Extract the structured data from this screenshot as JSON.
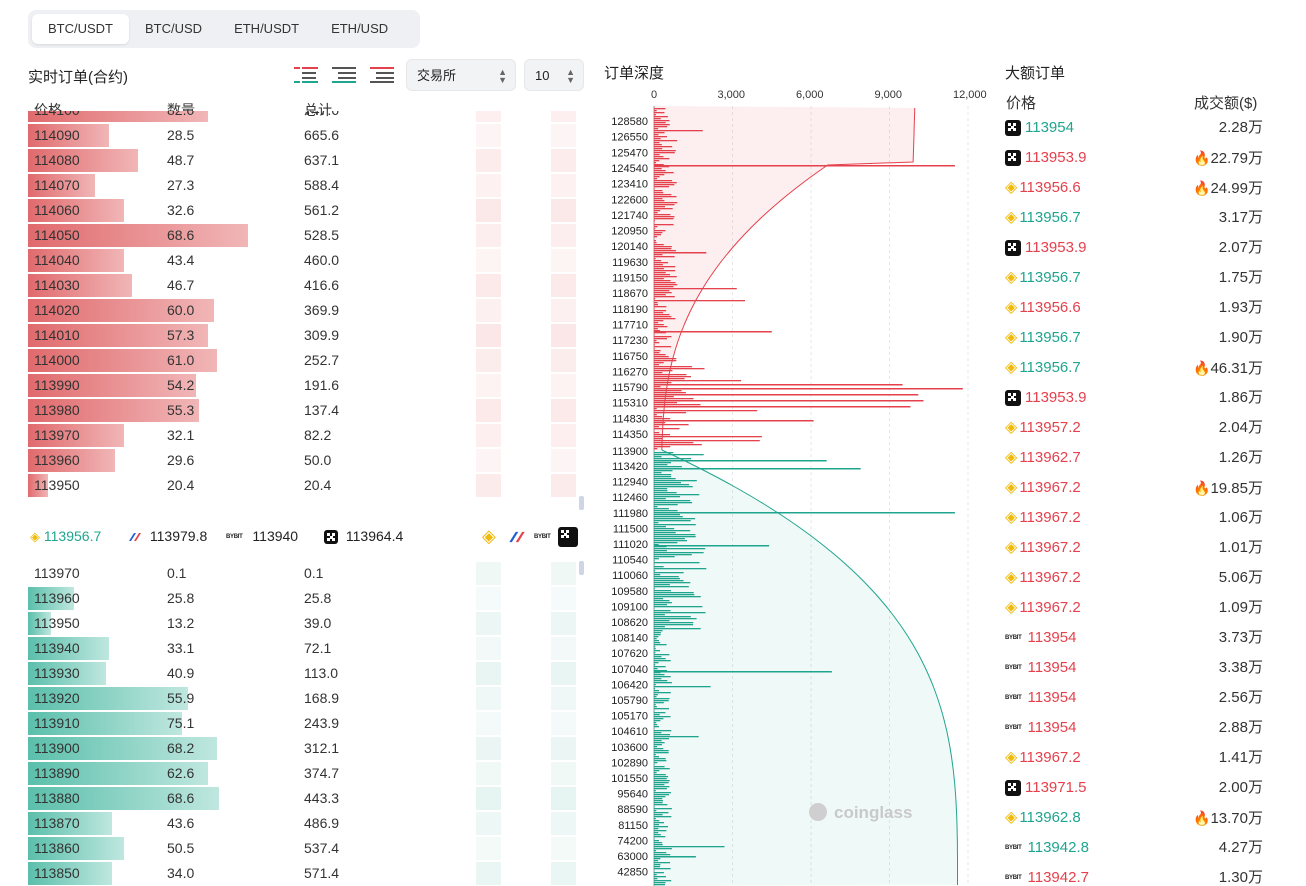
{
  "tabs": [
    "BTC/USDT",
    "BTC/USD",
    "ETH/USDT",
    "ETH/USD"
  ],
  "orderbook": {
    "title": "实时订单(合约)",
    "exchange_select": "交易所",
    "depth_select": "10",
    "headers": {
      "price": "价格",
      "qty": "数量",
      "total": "总计"
    },
    "asks": [
      {
        "price": "114100",
        "qty": "82.0",
        "total": "747.6",
        "bar": 0.62
      },
      {
        "price": "114090",
        "qty": "28.5",
        "total": "665.6",
        "bar": 0.28
      },
      {
        "price": "114080",
        "qty": "48.7",
        "total": "637.1",
        "bar": 0.38
      },
      {
        "price": "114070",
        "qty": "27.3",
        "total": "588.4",
        "bar": 0.23
      },
      {
        "price": "114060",
        "qty": "32.6",
        "total": "561.2",
        "bar": 0.33
      },
      {
        "price": "114050",
        "qty": "68.6",
        "total": "528.5",
        "bar": 0.76
      },
      {
        "price": "114040",
        "qty": "43.4",
        "total": "460.0",
        "bar": 0.33
      },
      {
        "price": "114030",
        "qty": "46.7",
        "total": "416.6",
        "bar": 0.36
      },
      {
        "price": "114020",
        "qty": "60.0",
        "total": "369.9",
        "bar": 0.64
      },
      {
        "price": "114010",
        "qty": "57.3",
        "total": "309.9",
        "bar": 0.62
      },
      {
        "price": "114000",
        "qty": "61.0",
        "total": "252.7",
        "bar": 0.65
      },
      {
        "price": "113990",
        "qty": "54.2",
        "total": "191.6",
        "bar": 0.58
      },
      {
        "price": "113980",
        "qty": "55.3",
        "total": "137.4",
        "bar": 0.59
      },
      {
        "price": "113970",
        "qty": "32.1",
        "total": "82.2",
        "bar": 0.33
      },
      {
        "price": "113960",
        "qty": "29.6",
        "total": "50.0",
        "bar": 0.3
      },
      {
        "price": "113950",
        "qty": "20.4",
        "total": "20.4",
        "bar": 0.07
      }
    ],
    "exchange_prices": [
      {
        "exchange": "binance",
        "icon": "binance-icon",
        "price": "113956.7"
      },
      {
        "exchange": "deribit",
        "icon": "deribit-icon",
        "price": "113979.8"
      },
      {
        "exchange": "bybit",
        "icon": "bybit-icon",
        "price": "113940"
      },
      {
        "exchange": "okx",
        "icon": "okx-icon",
        "price": "113964.4"
      }
    ],
    "bids": [
      {
        "price": "113970",
        "qty": "0.1",
        "total": "0.1",
        "bar": 0.0
      },
      {
        "price": "113960",
        "qty": "25.8",
        "total": "25.8",
        "bar": 0.16
      },
      {
        "price": "113950",
        "qty": "13.2",
        "total": "39.0",
        "bar": 0.08
      },
      {
        "price": "113940",
        "qty": "33.1",
        "total": "72.1",
        "bar": 0.28
      },
      {
        "price": "113930",
        "qty": "40.9",
        "total": "113.0",
        "bar": 0.27
      },
      {
        "price": "113920",
        "qty": "55.9",
        "total": "168.9",
        "bar": 0.55
      },
      {
        "price": "113910",
        "qty": "75.1",
        "total": "243.9",
        "bar": 0.53
      },
      {
        "price": "113900",
        "qty": "68.2",
        "total": "312.1",
        "bar": 0.65
      },
      {
        "price": "113890",
        "qty": "62.6",
        "total": "374.7",
        "bar": 0.62
      },
      {
        "price": "113880",
        "qty": "68.6",
        "total": "443.3",
        "bar": 0.66
      },
      {
        "price": "113870",
        "qty": "43.6",
        "total": "486.9",
        "bar": 0.29
      },
      {
        "price": "113860",
        "qty": "50.5",
        "total": "537.4",
        "bar": 0.33
      },
      {
        "price": "113850",
        "qty": "34.0",
        "total": "571.4",
        "bar": 0.29
      }
    ]
  },
  "depth": {
    "title": "订单深度",
    "x_ticks": [
      "0",
      "3,000",
      "6,000",
      "9,000",
      "12,000"
    ],
    "x_max": 12000,
    "ask_labels": [
      "128580",
      "126550",
      "125470",
      "124540",
      "123410",
      "122600",
      "121740",
      "120950",
      "120140",
      "119630",
      "119150",
      "118670",
      "118190",
      "117710",
      "117230",
      "116750",
      "116270",
      "115790",
      "115310",
      "114830",
      "114350"
    ],
    "mid_label": "113900",
    "bid_labels": [
      "113420",
      "112940",
      "112460",
      "111980",
      "111500",
      "111020",
      "110540",
      "110060",
      "109580",
      "109100",
      "108620",
      "108140",
      "107620",
      "107040",
      "106420",
      "105790",
      "105170",
      "104610",
      "103600",
      "102890",
      "101550",
      "95640",
      "88590",
      "81150",
      "74200",
      "63000",
      "42850"
    ],
    "watermark": "coinglass"
  },
  "large_orders": {
    "title": "大额订单",
    "headers": {
      "price": "价格",
      "amount": "成交额($)"
    },
    "rows": [
      {
        "ex": "okx",
        "price": "113954",
        "side": "buy",
        "amount": "2.28万",
        "hot": false
      },
      {
        "ex": "okx",
        "price": "113953.9",
        "side": "sell",
        "amount": "22.79万",
        "hot": true
      },
      {
        "ex": "binance",
        "price": "113956.6",
        "side": "sell",
        "amount": "24.99万",
        "hot": true
      },
      {
        "ex": "binance",
        "price": "113956.7",
        "side": "buy",
        "amount": "3.17万",
        "hot": false
      },
      {
        "ex": "okx",
        "price": "113953.9",
        "side": "sell",
        "amount": "2.07万",
        "hot": false
      },
      {
        "ex": "binance",
        "price": "113956.7",
        "side": "buy",
        "amount": "1.75万",
        "hot": false
      },
      {
        "ex": "binance",
        "price": "113956.6",
        "side": "sell",
        "amount": "1.93万",
        "hot": false
      },
      {
        "ex": "binance",
        "price": "113956.7",
        "side": "buy",
        "amount": "1.90万",
        "hot": false
      },
      {
        "ex": "binance",
        "price": "113956.7",
        "side": "buy",
        "amount": "46.31万",
        "hot": true
      },
      {
        "ex": "okx",
        "price": "113953.9",
        "side": "sell",
        "amount": "1.86万",
        "hot": false
      },
      {
        "ex": "binance",
        "price": "113957.2",
        "side": "sell",
        "amount": "2.04万",
        "hot": false
      },
      {
        "ex": "binance",
        "price": "113962.7",
        "side": "sell",
        "amount": "1.26万",
        "hot": false
      },
      {
        "ex": "binance",
        "price": "113967.2",
        "side": "sell",
        "amount": "19.85万",
        "hot": true
      },
      {
        "ex": "binance",
        "price": "113967.2",
        "side": "sell",
        "amount": "1.06万",
        "hot": false
      },
      {
        "ex": "binance",
        "price": "113967.2",
        "side": "sell",
        "amount": "1.01万",
        "hot": false
      },
      {
        "ex": "binance",
        "price": "113967.2",
        "side": "sell",
        "amount": "5.06万",
        "hot": false
      },
      {
        "ex": "binance",
        "price": "113967.2",
        "side": "sell",
        "amount": "1.09万",
        "hot": false
      },
      {
        "ex": "bybit",
        "price": "113954",
        "side": "sell",
        "amount": "3.73万",
        "hot": false
      },
      {
        "ex": "bybit",
        "price": "113954",
        "side": "sell",
        "amount": "3.38万",
        "hot": false
      },
      {
        "ex": "bybit",
        "price": "113954",
        "side": "sell",
        "amount": "2.56万",
        "hot": false
      },
      {
        "ex": "bybit",
        "price": "113954",
        "side": "sell",
        "amount": "2.88万",
        "hot": false
      },
      {
        "ex": "binance",
        "price": "113967.2",
        "side": "sell",
        "amount": "1.41万",
        "hot": false
      },
      {
        "ex": "okx",
        "price": "113971.5",
        "side": "sell",
        "amount": "2.00万",
        "hot": false
      },
      {
        "ex": "binance",
        "price": "113962.8",
        "side": "buy",
        "amount": "13.70万",
        "hot": true
      },
      {
        "ex": "bybit",
        "price": "113942.8",
        "side": "buy",
        "amount": "4.27万",
        "hot": false
      },
      {
        "ex": "bybit",
        "price": "113942.7",
        "side": "sell",
        "amount": "1.30万",
        "hot": false
      }
    ]
  },
  "colors": {
    "ask": "#e5414d",
    "bid": "#1fa58e",
    "binance": "#f0b90b"
  }
}
